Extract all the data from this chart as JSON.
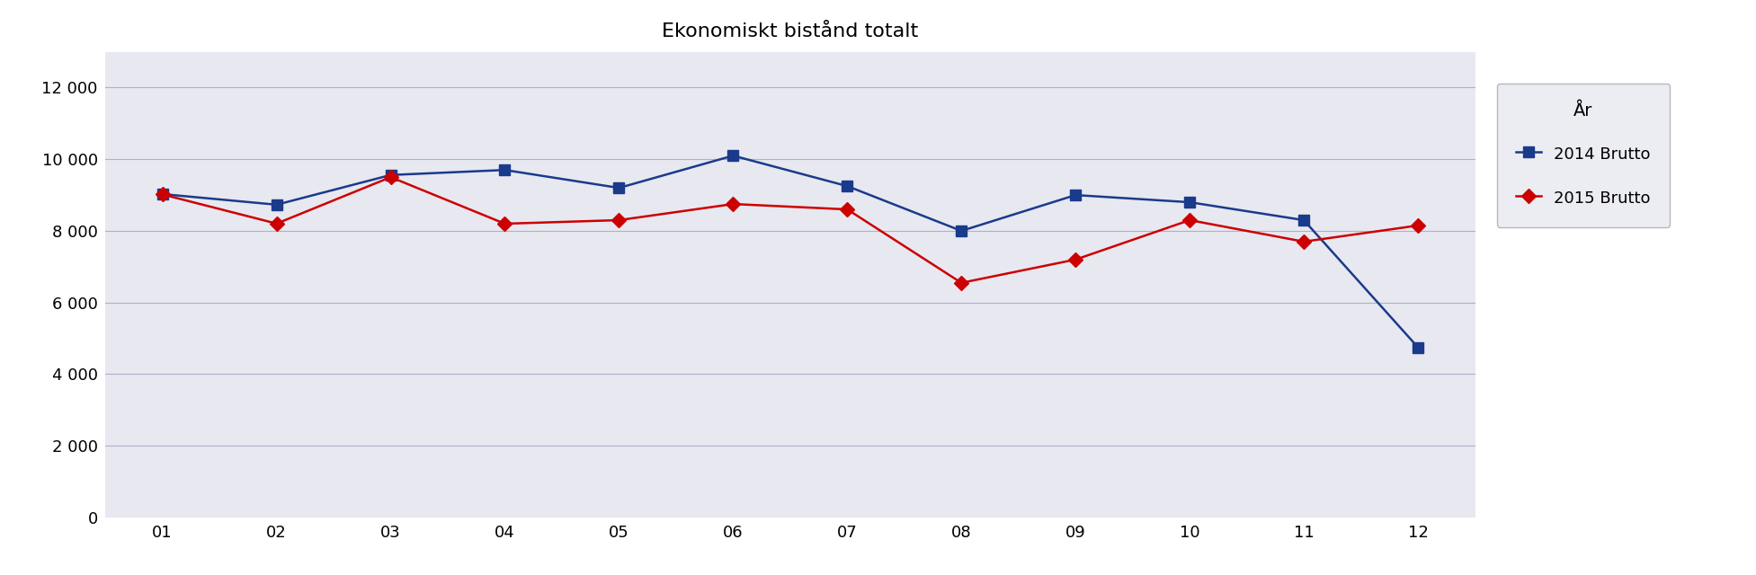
{
  "title": "Ekonomiskt bistånd totalt",
  "months": [
    "01",
    "02",
    "03",
    "04",
    "05",
    "06",
    "07",
    "08",
    "09",
    "10",
    "11",
    "12"
  ],
  "series_2014": [
    9027,
    8731,
    9560,
    9700,
    9200,
    10100,
    9250,
    8000,
    9000,
    8800,
    8300,
    4750
  ],
  "series_2015": [
    9018,
    8204,
    9500,
    8200,
    8300,
    8750,
    8600,
    6550,
    7200,
    8300,
    7700,
    8150
  ],
  "color_2014": "#1a3a8c",
  "color_2015": "#cc0000",
  "legend_title": "År",
  "legend_2014": "2014 Brutto",
  "legend_2015": "2015 Brutto",
  "ylim": [
    0,
    13000
  ],
  "yticks": [
    0,
    2000,
    4000,
    6000,
    8000,
    10000,
    12000
  ],
  "ytick_labels": [
    "0",
    "2 000",
    "4 000",
    "6 000",
    "8 000",
    "10 000",
    "12 000"
  ],
  "plot_bg_color": "#e8e8f0",
  "figure_bg_color": "#ffffff",
  "title_fontsize": 16,
  "grid_color": "#b0b0c8",
  "line_width": 1.8,
  "marker_size": 8
}
